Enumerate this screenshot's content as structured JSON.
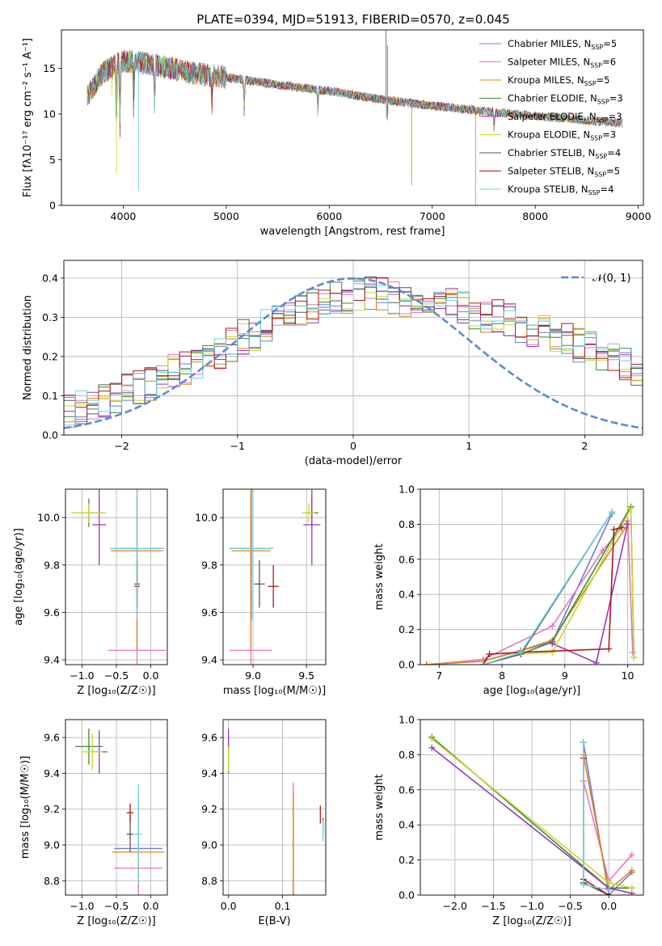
{
  "title": "PLATE=0394, MJD=51913, FIBERID=0570, z=0.045",
  "colors": {
    "ch_miles": "#6a7fd6",
    "sa_miles": "#e377c2",
    "kr_miles": "#d9891a",
    "ch_elodie": "#3c8a3c",
    "sa_elodie": "#9a38b8",
    "kr_elodie": "#c8d82a",
    "ch_stelib": "#5a5a5a",
    "sa_stelib": "#b01818",
    "kr_stelib": "#6fd0e0",
    "gauss": "#5b8bd6"
  },
  "chart_data": [
    {
      "type": "line",
      "name": "spectrum",
      "xlabel": "wavelength [Angstrom, rest frame]",
      "ylabel": "Flux [fλ10⁻¹⁷ erg cm⁻² s⁻¹ A⁻¹]",
      "xlim": [
        3400,
        9050
      ],
      "ylim": [
        0,
        19.2
      ],
      "xticks": [
        "4000",
        "5000",
        "6000",
        "7000",
        "8000",
        "9000"
      ],
      "yticks": [
        "0",
        "5",
        "10",
        "15"
      ],
      "legend_position": "top-right",
      "legend": [
        {
          "key": "ch_miles",
          "label": "Chabrier MILES, N",
          "sub": "SSP",
          "suffix": "=5"
        },
        {
          "key": "sa_miles",
          "label": "Salpeter MILES, N",
          "sub": "SSP",
          "suffix": "=6"
        },
        {
          "key": "kr_miles",
          "label": "Kroupa MILES, N",
          "sub": "SSP",
          "suffix": "=5"
        },
        {
          "key": "ch_elodie",
          "label": "Chabrier ELODIE, N",
          "sub": "SSP",
          "suffix": "=3"
        },
        {
          "key": "sa_elodie",
          "label": "Salpeter ELODIE, N",
          "sub": "SSP",
          "suffix": "=3"
        },
        {
          "key": "kr_elodie",
          "label": "Kroupa ELODIE, N",
          "sub": "SSP",
          "suffix": "=3"
        },
        {
          "key": "ch_stelib",
          "label": "Chabrier STELIB, N",
          "sub": "SSP",
          "suffix": "=4"
        },
        {
          "key": "sa_stelib",
          "label": "Salpeter STELIB, N",
          "sub": "SSP",
          "suffix": "=5"
        },
        {
          "key": "kr_stelib",
          "label": "Kroupa STELIB, N",
          "sub": "SSP",
          "suffix": "=4"
        }
      ],
      "continuum": [
        [
          3650,
          12.0
        ],
        [
          3800,
          14.5
        ],
        [
          4000,
          15.8
        ],
        [
          4300,
          15.4
        ],
        [
          4600,
          14.6
        ],
        [
          5000,
          14.0
        ],
        [
          5500,
          13.2
        ],
        [
          6000,
          12.5
        ],
        [
          6500,
          11.6
        ],
        [
          7000,
          10.9
        ],
        [
          7500,
          10.3
        ],
        [
          8000,
          9.8
        ],
        [
          8500,
          9.3
        ],
        [
          8850,
          9.0
        ]
      ],
      "absorption": [
        [
          3934,
          7
        ],
        [
          3968,
          6
        ],
        [
          4102,
          4
        ],
        [
          4304,
          4
        ],
        [
          4861,
          3
        ],
        [
          5175,
          3
        ],
        [
          5890,
          2.5
        ],
        [
          6563,
          2
        ],
        [
          7600,
          2
        ]
      ],
      "spikes": [
        [
          3890,
          3,
          "kr_elodie"
        ],
        [
          3934,
          12,
          "kr_elodie"
        ],
        [
          4150,
          14,
          "kr_stelib"
        ],
        [
          4100,
          6,
          "ch_stelib"
        ],
        [
          6550,
          8,
          "ch_stelib"
        ],
        [
          6565,
          6,
          "ch_stelib"
        ],
        [
          6800,
          9,
          "kr_miles"
        ],
        [
          7420,
          11,
          "kr_miles"
        ]
      ]
    },
    {
      "type": "line",
      "name": "residual-histograms",
      "xlabel": "(data-model)/error",
      "ylabel": "Normed distribution",
      "xlim": [
        -2.5,
        2.5
      ],
      "ylim": [
        0,
        0.445
      ],
      "xticks": [
        "−2",
        "−1",
        "0",
        "1",
        "2"
      ],
      "yticks": [
        "0.0",
        "0.1",
        "0.2",
        "0.3",
        "0.4"
      ],
      "legend_position": "top-right",
      "gauss_label": "𝒩(0, 1)",
      "bin_width": 0.1,
      "base": [
        0.06,
        0.07,
        0.08,
        0.09,
        0.1,
        0.11,
        0.12,
        0.13,
        0.15,
        0.16,
        0.17,
        0.18,
        0.2,
        0.21,
        0.23,
        0.25,
        0.26,
        0.28,
        0.29,
        0.31,
        0.32,
        0.33,
        0.34,
        0.35,
        0.35,
        0.36,
        0.36,
        0.36,
        0.35,
        0.34,
        0.35,
        0.34,
        0.33,
        0.33,
        0.32,
        0.31,
        0.3,
        0.3,
        0.29,
        0.28,
        0.27,
        0.26,
        0.25,
        0.24,
        0.23,
        0.22,
        0.2,
        0.19,
        0.18,
        0.16,
        0.15,
        0.14,
        0.13,
        0.12,
        0.11,
        0.1,
        0.09,
        0.08,
        0.07,
        0.06
      ]
    },
    {
      "type": "scatter",
      "name": "age-vs-Z",
      "xlabel": "Z [log₁₀(Z/Z☉)]",
      "ylabel": "age  [log₁₀(age/yr)]",
      "xlim": [
        -1.24,
        0.24
      ],
      "ylim": [
        9.38,
        10.12
      ],
      "xticks": [
        "−1.0",
        "−0.5",
        "0.0"
      ],
      "yticks": [
        "9.4",
        "9.6",
        "9.8",
        "10.0"
      ],
      "points": [
        {
          "key": "ch_miles",
          "x": -0.2,
          "y": 9.87,
          "ex": 0.35,
          "ey": 0.22
        },
        {
          "key": "sa_miles",
          "x": -0.2,
          "y": 9.44,
          "ex": 0.42,
          "ey": 0.6
        },
        {
          "key": "kr_miles",
          "x": -0.2,
          "y": 9.86,
          "ex": 0.38,
          "ey": 0.42
        },
        {
          "key": "ch_elodie",
          "x": -0.9,
          "y": 10.02,
          "ex": 0.2,
          "ey": 0.06
        },
        {
          "key": "sa_elodie",
          "x": -0.75,
          "y": 9.97,
          "ex": 0.1,
          "ey": 0.17
        },
        {
          "key": "kr_elodie",
          "x": -0.9,
          "y": 10.02,
          "ex": 0.25,
          "ey": 0.04
        },
        {
          "key": "ch_stelib",
          "x": -0.2,
          "y": 9.72,
          "ex": 0.04,
          "ey": 0.1
        },
        {
          "key": "sa_stelib",
          "x": -0.2,
          "y": 9.71,
          "ex": 0.04,
          "ey": 0.09
        },
        {
          "key": "kr_stelib",
          "x": -0.2,
          "y": 9.87,
          "ex": 0.4,
          "ey": 0.3
        }
      ]
    },
    {
      "type": "scatter",
      "name": "age-vs-mass",
      "xlabel": "mass [log₁₀(M/M☉)]",
      "ylabel": "",
      "xlim": [
        8.72,
        9.68
      ],
      "ylim": [
        9.38,
        10.12
      ],
      "xticks": [
        "9.0",
        "9.5"
      ],
      "yticks": [
        "9.4",
        "9.6",
        "9.8",
        "10.0"
      ],
      "points": [
        {
          "key": "ch_miles",
          "x": 8.98,
          "y": 9.87,
          "ex": 0.2,
          "ey": 0.22
        },
        {
          "key": "sa_miles",
          "x": 8.98,
          "y": 9.44,
          "ex": 0.2,
          "ey": 0.6
        },
        {
          "key": "kr_miles",
          "x": 8.98,
          "y": 9.86,
          "ex": 0.18,
          "ey": 0.42
        },
        {
          "key": "ch_elodie",
          "x": 9.55,
          "y": 10.02,
          "ex": 0.06,
          "ey": 0.06
        },
        {
          "key": "sa_elodie",
          "x": 9.55,
          "y": 9.97,
          "ex": 0.08,
          "ey": 0.17
        },
        {
          "key": "kr_elodie",
          "x": 9.52,
          "y": 10.02,
          "ex": 0.06,
          "ey": 0.04
        },
        {
          "key": "ch_stelib",
          "x": 9.06,
          "y": 9.72,
          "ex": 0.05,
          "ey": 0.1
        },
        {
          "key": "sa_stelib",
          "x": 9.19,
          "y": 9.71,
          "ex": 0.05,
          "ey": 0.09
        },
        {
          "key": "kr_stelib",
          "x": 8.99,
          "y": 9.87,
          "ex": 0.2,
          "ey": 0.3
        }
      ]
    },
    {
      "type": "line",
      "name": "mass-weight-vs-age",
      "xlabel": "age  [log₁₀(age/yr)]",
      "ylabel": "mass weight",
      "xlim": [
        6.7,
        10.25
      ],
      "ylim": [
        0,
        1.0
      ],
      "xticks": [
        "7",
        "8",
        "9",
        "10"
      ],
      "yticks": [
        "0.0",
        "0.2",
        "0.4",
        "0.6",
        "0.8",
        "1.0"
      ],
      "series": [
        {
          "key": "ch_miles",
          "points": [
            [
              6.8,
              0.0
            ],
            [
              7.7,
              0.02
            ],
            [
              8.8,
              0.13
            ],
            [
              9.75,
              0.86
            ]
          ]
        },
        {
          "key": "sa_miles",
          "points": [
            [
              6.8,
              0.0
            ],
            [
              7.7,
              0.03
            ],
            [
              8.8,
              0.22
            ],
            [
              9.6,
              0.65
            ],
            [
              10.0,
              0.82
            ],
            [
              10.08,
              0.07
            ]
          ]
        },
        {
          "key": "kr_miles",
          "points": [
            [
              6.8,
              0.0
            ],
            [
              7.7,
              0.02
            ],
            [
              8.3,
              0.08
            ],
            [
              8.8,
              0.14
            ],
            [
              10.0,
              0.8
            ]
          ]
        },
        {
          "key": "ch_elodie",
          "points": [
            [
              8.3,
              0.06
            ],
            [
              8.8,
              0.13
            ],
            [
              10.05,
              0.9
            ],
            [
              10.1,
              0.04
            ]
          ]
        },
        {
          "key": "sa_elodie",
          "points": [
            [
              8.8,
              0.12
            ],
            [
              9.5,
              0.01
            ],
            [
              10.0,
              0.8
            ]
          ]
        },
        {
          "key": "kr_elodie",
          "points": [
            [
              8.3,
              0.06
            ],
            [
              8.8,
              0.07
            ],
            [
              10.05,
              0.89
            ],
            [
              10.1,
              0.04
            ]
          ]
        },
        {
          "key": "ch_stelib",
          "points": [
            [
              7.7,
              0.0
            ],
            [
              8.3,
              0.06
            ],
            [
              9.75,
              0.87
            ]
          ]
        },
        {
          "key": "sa_stelib",
          "points": [
            [
              7.7,
              0.0
            ],
            [
              7.8,
              0.06
            ],
            [
              8.3,
              0.07
            ],
            [
              9.7,
              0.09
            ],
            [
              9.78,
              0.77
            ],
            [
              9.9,
              0.78
            ]
          ]
        },
        {
          "key": "kr_stelib",
          "points": [
            [
              7.7,
              0.0
            ],
            [
              8.3,
              0.07
            ],
            [
              9.75,
              0.87
            ]
          ]
        }
      ]
    },
    {
      "type": "scatter",
      "name": "mass-vs-Z",
      "xlabel": "Z [log₁₀(Z/Z☉)]",
      "ylabel": "mass [log₁₀(M/M☉)]",
      "xlim": [
        -1.24,
        0.24
      ],
      "ylim": [
        8.72,
        9.7
      ],
      "xticks": [
        "−1.0",
        "−0.5",
        "0.0"
      ],
      "yticks": [
        "8.8",
        "9.0",
        "9.2",
        "9.4",
        "9.6"
      ],
      "points": [
        {
          "key": "ch_miles",
          "x": -0.18,
          "y": 8.98,
          "ex": 0.35,
          "ey": 0.22
        },
        {
          "key": "sa_miles",
          "x": -0.18,
          "y": 8.87,
          "ex": 0.35,
          "ey": 0.4
        },
        {
          "key": "kr_miles",
          "x": -0.18,
          "y": 8.96,
          "ex": 0.38,
          "ey": 0.2
        },
        {
          "key": "ch_elodie",
          "x": -0.9,
          "y": 9.55,
          "ex": 0.2,
          "ey": 0.1
        },
        {
          "key": "sa_elodie",
          "x": -0.75,
          "y": 9.52,
          "ex": 0.12,
          "ey": 0.12
        },
        {
          "key": "kr_elodie",
          "x": -0.85,
          "y": 9.52,
          "ex": 0.15,
          "ey": 0.1
        },
        {
          "key": "ch_stelib",
          "x": -0.3,
          "y": 9.06,
          "ex": 0.05,
          "ey": 0.1
        },
        {
          "key": "sa_stelib",
          "x": -0.3,
          "y": 9.18,
          "ex": 0.05,
          "ey": 0.05
        },
        {
          "key": "kr_stelib",
          "x": -0.18,
          "y": 9.06,
          "ex": 0.05,
          "ey": 0.28
        }
      ]
    },
    {
      "type": "scatter",
      "name": "mass-vs-EBV",
      "xlabel": "E(B-V)",
      "ylabel": "",
      "xlim": [
        -0.01,
        0.18
      ],
      "ylim": [
        8.72,
        9.7
      ],
      "xticks": [
        "0.0",
        "0.1"
      ],
      "yticks": [
        "8.8",
        "9.0",
        "9.2",
        "9.4",
        "9.6"
      ],
      "points": [
        {
          "key": "ch_miles",
          "x": 0.12,
          "y": 9.0,
          "ex": 0,
          "ey": 0.3
        },
        {
          "key": "sa_miles",
          "x": 0.12,
          "y": 9.0,
          "ex": 0,
          "ey": 0.35
        },
        {
          "key": "kr_miles",
          "x": 0.12,
          "y": 9.0,
          "ex": 0,
          "ey": 0.3
        },
        {
          "key": "ch_elodie",
          "x": 0.0,
          "y": 9.5,
          "ex": 0,
          "ey": 0.1
        },
        {
          "key": "sa_elodie",
          "x": 0.0,
          "y": 9.58,
          "ex": 0,
          "ey": 0.07
        },
        {
          "key": "kr_elodie",
          "x": 0.0,
          "y": 9.48,
          "ex": 0,
          "ey": 0.07
        },
        {
          "key": "ch_stelib",
          "x": 0.175,
          "y": 9.1,
          "ex": 0,
          "ey": 0.05
        },
        {
          "key": "sa_stelib",
          "x": 0.17,
          "y": 9.17,
          "ex": 0,
          "ey": 0.05
        },
        {
          "key": "kr_stelib",
          "x": 0.175,
          "y": 9.08,
          "ex": 0,
          "ey": 0.06
        }
      ]
    },
    {
      "type": "line",
      "name": "mass-weight-vs-Z",
      "xlabel": "Z [log₁₀(Z/Z☉)]",
      "ylabel": "mass weight",
      "xlim": [
        -2.45,
        0.45
      ],
      "ylim": [
        0,
        1.0
      ],
      "xticks": [
        "−2.0",
        "−1.5",
        "−1.0",
        "−0.5",
        "0.0"
      ],
      "yticks": [
        "0.0",
        "0.2",
        "0.4",
        "0.6",
        "0.8",
        "1.0"
      ],
      "series": [
        {
          "key": "ch_miles",
          "points": [
            [
              -0.33,
              0.87
            ],
            [
              0.0,
              0.0
            ],
            [
              0.3,
              0.13
            ]
          ]
        },
        {
          "key": "sa_miles",
          "points": [
            [
              -0.33,
              0.65
            ],
            [
              0.0,
              0.08
            ],
            [
              0.3,
              0.23
            ]
          ]
        },
        {
          "key": "kr_miles",
          "points": [
            [
              -0.33,
              0.8
            ],
            [
              0.0,
              0.03
            ],
            [
              0.3,
              0.14
            ]
          ]
        },
        {
          "key": "ch_elodie",
          "points": [
            [
              -2.3,
              0.9
            ],
            [
              0.0,
              0.04
            ],
            [
              0.3,
              0.04
            ]
          ]
        },
        {
          "key": "sa_elodie",
          "points": [
            [
              -2.3,
              0.84
            ],
            [
              0.0,
              0.04
            ],
            [
              0.3,
              0.01
            ]
          ]
        },
        {
          "key": "kr_elodie",
          "points": [
            [
              -2.3,
              0.89
            ],
            [
              0.0,
              0.07
            ],
            [
              0.3,
              0.04
            ]
          ]
        },
        {
          "key": "ch_stelib",
          "points": [
            [
              -0.33,
              0.87
            ],
            [
              -0.33,
              0.07
            ],
            [
              0.0,
              0.0
            ]
          ]
        },
        {
          "key": "sa_stelib",
          "points": [
            [
              -0.33,
              0.78
            ],
            [
              -0.33,
              0.09
            ],
            [
              0.0,
              0.0
            ]
          ]
        },
        {
          "key": "kr_stelib",
          "points": [
            [
              -0.33,
              0.87
            ],
            [
              -0.33,
              0.06
            ],
            [
              0.0,
              0.03
            ]
          ]
        }
      ]
    }
  ]
}
